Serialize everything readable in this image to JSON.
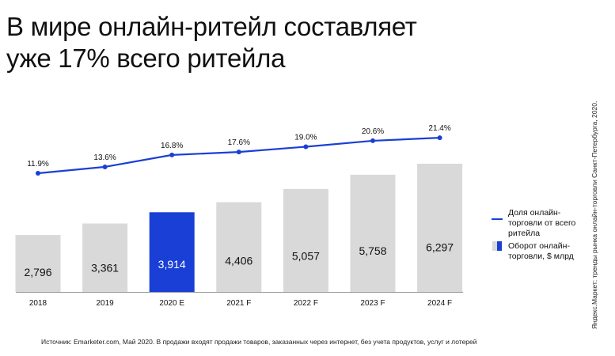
{
  "title": "В мире онлайн-ритейл составляет уже 17% всего ритейла",
  "legend": {
    "line_label": "Доля онлайн-торговли от всего ритейла",
    "bar_label": "Оборот онлайн-торговли, $ млрд"
  },
  "source": "Источник: Emarketer.com, Май 2020. В продажи входят продажи товаров, заказанных через интернет, без учета продуктов, услуг и лотерей",
  "side_note": "Яндекс.Маркет: тренды рынка онлайн-торговли Санкт-Петербурга, 2020.",
  "colors": {
    "bar": "#d9d9d9",
    "highlight": "#1a3fd6",
    "line": "#1a3fd6"
  },
  "chart_data": {
    "type": "bar+line",
    "categories": [
      "2018",
      "2019",
      "2020 E",
      "2021 F",
      "2022 F",
      "2023 F",
      "2024 F"
    ],
    "highlight_category": "2020 E",
    "series": [
      {
        "name": "Оборот онлайн-торговли, $ млрд",
        "type": "bar",
        "values": [
          2796,
          3361,
          3914,
          4406,
          5057,
          5758,
          6297
        ],
        "labels": [
          "2,796",
          "3,361",
          "3,914",
          "4,406",
          "5,057",
          "5,758",
          "6,297"
        ]
      },
      {
        "name": "Доля онлайн-торговли от всего ритейла",
        "type": "line",
        "values": [
          11.9,
          13.6,
          16.8,
          17.6,
          19.0,
          20.6,
          21.4
        ],
        "labels": [
          "11.9%",
          "13.6%",
          "16.8%",
          "17.6%",
          "19.0%",
          "20.6%",
          "21.4%"
        ]
      }
    ],
    "legend_position": "right",
    "grid": false
  }
}
